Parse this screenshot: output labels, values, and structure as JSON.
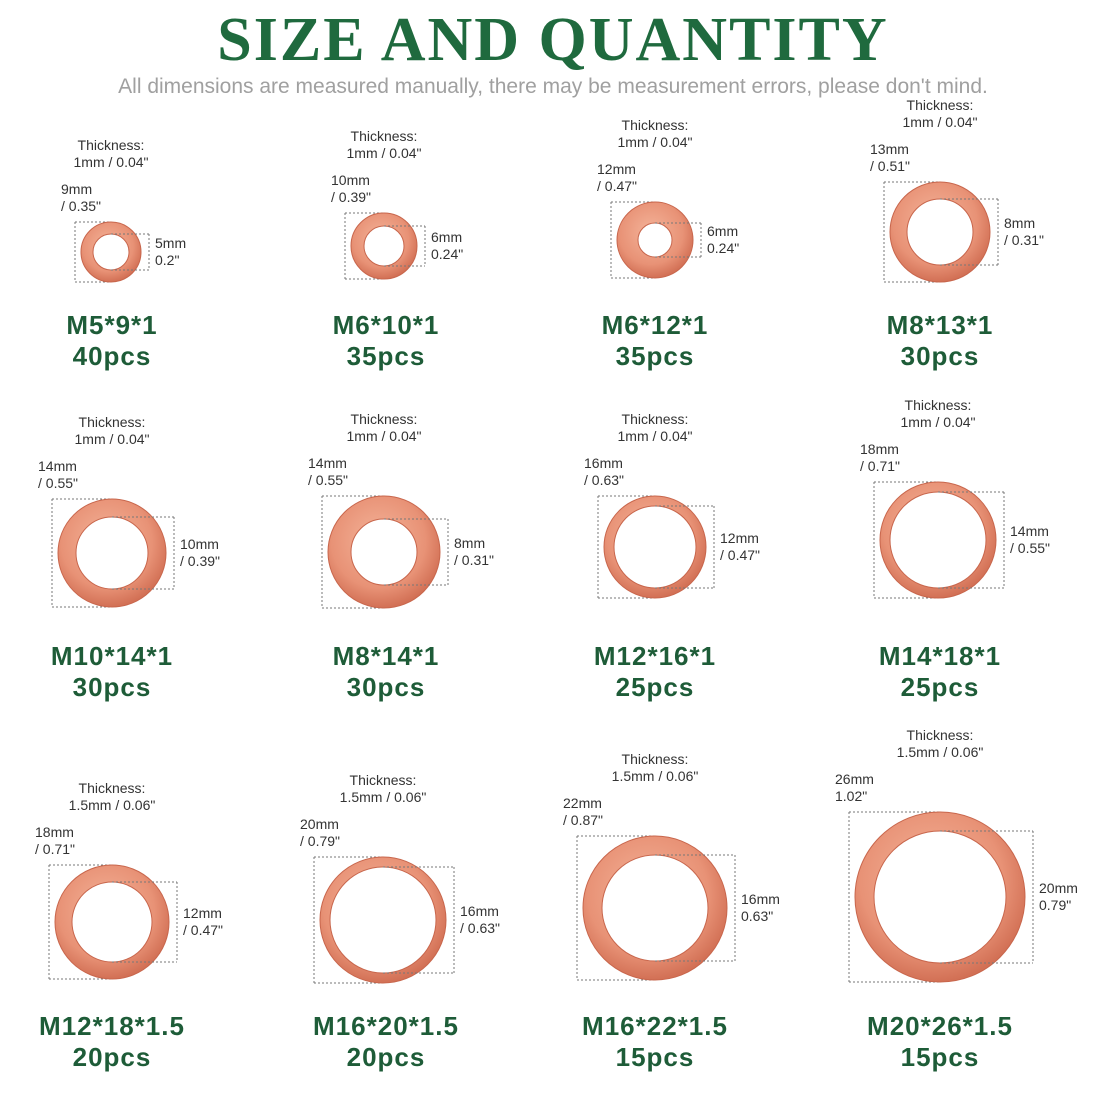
{
  "header": {
    "title": "SIZE AND QUANTITY",
    "subtitle": "All dimensions are measured manually, there may be measurement errors, please don't mind."
  },
  "items": [
    {
      "thickness": [
        "Thickness:",
        "1mm / 0.04\""
      ],
      "outer": [
        "9mm",
        "/ 0.35\""
      ],
      "inner": [
        "5mm",
        "0.2\""
      ],
      "model": "M5*9*1",
      "quantity": "40pcs"
    },
    {
      "thickness": [
        "Thickness:",
        "1mm / 0.04\""
      ],
      "outer": [
        "10mm",
        "/ 0.39\""
      ],
      "inner": [
        "6mm",
        "0.24\""
      ],
      "model": "M6*10*1",
      "quantity": "35pcs"
    },
    {
      "thickness": [
        "Thickness:",
        "1mm / 0.04\""
      ],
      "outer": [
        "12mm",
        "/ 0.47\""
      ],
      "inner": [
        "6mm",
        "0.24\""
      ],
      "model": "M6*12*1",
      "quantity": "35pcs"
    },
    {
      "thickness": [
        "Thickness:",
        "1mm / 0.04\""
      ],
      "outer": [
        "13mm",
        "/ 0.51\""
      ],
      "inner": [
        "8mm",
        "/ 0.31\""
      ],
      "model": "M8*13*1",
      "quantity": "30pcs"
    },
    {
      "thickness": [
        "Thickness:",
        "1mm / 0.04\""
      ],
      "outer": [
        "14mm",
        "/ 0.55\""
      ],
      "inner": [
        "10mm",
        "/ 0.39\""
      ],
      "model": "M10*14*1",
      "quantity": "30pcs"
    },
    {
      "thickness": [
        "Thickness:",
        "1mm / 0.04\""
      ],
      "outer": [
        "14mm",
        "/ 0.55\""
      ],
      "inner": [
        "8mm",
        "/ 0.31\""
      ],
      "model": "M8*14*1",
      "quantity": "30pcs"
    },
    {
      "thickness": [
        "Thickness:",
        "1mm / 0.04\""
      ],
      "outer": [
        "16mm",
        "/ 0.63\""
      ],
      "inner": [
        "12mm",
        "/ 0.47\""
      ],
      "model": "M12*16*1",
      "quantity": "25pcs"
    },
    {
      "thickness": [
        "Thickness:",
        "1mm / 0.04\""
      ],
      "outer": [
        "18mm",
        "/ 0.71\""
      ],
      "inner": [
        "14mm",
        "/ 0.55\""
      ],
      "model": "M14*18*1",
      "quantity": "25pcs"
    },
    {
      "thickness": [
        "Thickness:",
        "1.5mm / 0.06\""
      ],
      "outer": [
        "18mm",
        "/ 0.71\""
      ],
      "inner": [
        "12mm",
        "/ 0.47\""
      ],
      "model": "M12*18*1.5",
      "quantity": "20pcs"
    },
    {
      "thickness": [
        "Thickness:",
        "1.5mm / 0.06\""
      ],
      "outer": [
        "20mm",
        "/ 0.79\""
      ],
      "inner": [
        "16mm",
        "/ 0.63\""
      ],
      "model": "M16*20*1.5",
      "quantity": "20pcs"
    },
    {
      "thickness": [
        "Thickness:",
        "1.5mm / 0.06\""
      ],
      "outer": [
        "22mm",
        "/ 0.87\""
      ],
      "inner": [
        "16mm",
        "0.63\""
      ],
      "model": "M16*22*1.5",
      "quantity": "15pcs"
    },
    {
      "thickness": [
        "Thickness:",
        "1.5mm / 0.06\""
      ],
      "outer": [
        "26mm",
        "1.02\""
      ],
      "inner": [
        "20mm",
        "0.79\""
      ],
      "model": "M20*26*1.5",
      "quantity": "15pcs"
    }
  ]
}
